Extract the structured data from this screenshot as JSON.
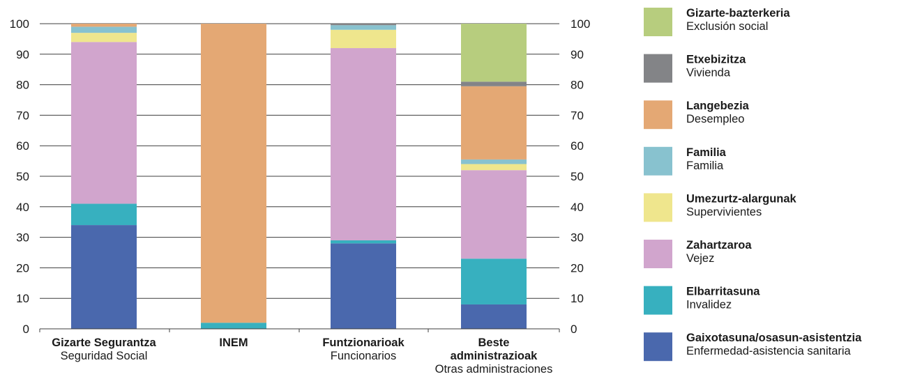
{
  "chart_data": {
    "type": "bar",
    "stacked": true,
    "ylim": [
      0,
      100
    ],
    "yticks": [
      0,
      10,
      20,
      30,
      40,
      50,
      60,
      70,
      80,
      90,
      100
    ],
    "grid": "horizontal",
    "legend_placement": "right",
    "categories": [
      {
        "label_eu": [
          "Gizarte Segurantza"
        ],
        "label_es": "Seguridad Social"
      },
      {
        "label_eu": [
          "INEM"
        ],
        "label_es": ""
      },
      {
        "label_eu": [
          "Funtzionarioak"
        ],
        "label_es": "Funcionarios"
      },
      {
        "label_eu": [
          "Beste",
          "administrazioak"
        ],
        "label_es": "Otras administraciones"
      }
    ],
    "series": [
      {
        "name_eu": "Gaixotasuna/osasun-asistentzia",
        "name_es": "Enfermedad-asistencia sanitaria",
        "color": "#4a68ad",
        "values": [
          34,
          0,
          28,
          8
        ]
      },
      {
        "name_eu": "Elbarritasuna",
        "name_es": "Invalidez",
        "color": "#37b0bf",
        "values": [
          7,
          2,
          1,
          15
        ]
      },
      {
        "name_eu": "Zahartzaroa",
        "name_es": "Vejez",
        "color": "#d1a5cd",
        "values": [
          53,
          0,
          63,
          29
        ]
      },
      {
        "name_eu": "Umezurtz-alargunak",
        "name_es": "Supervivientes",
        "color": "#efe68d",
        "values": [
          3,
          0,
          6,
          2
        ]
      },
      {
        "name_eu": "Familia",
        "name_es": "Familia",
        "color": "#88c2cf",
        "values": [
          2,
          0,
          1.5,
          1.5
        ]
      },
      {
        "name_eu": "Langebezia",
        "name_es": "Desempleo",
        "color": "#e4a874",
        "values": [
          1,
          98,
          0,
          24
        ]
      },
      {
        "name_eu": "Etxebizitza",
        "name_es": "Vivienda",
        "color": "#838487",
        "values": [
          0,
          0,
          0.5,
          1.5
        ]
      },
      {
        "name_eu": "Gizarte-bazterkeria",
        "name_es": "Exclusión social",
        "color": "#b7cd7e",
        "values": [
          0,
          0,
          0,
          19
        ]
      }
    ]
  }
}
